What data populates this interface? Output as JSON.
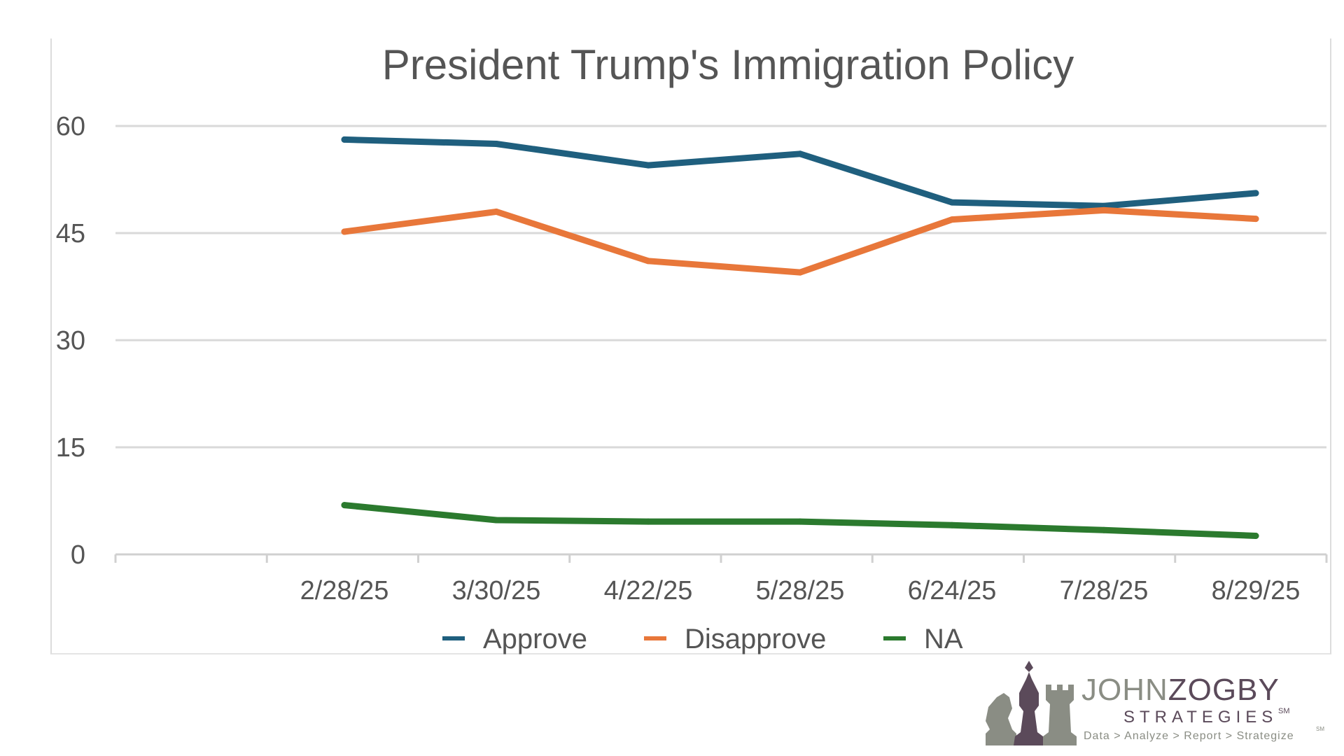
{
  "chart_data": {
    "type": "line",
    "title": "President Trump's Immigration Policy",
    "xlabel": "",
    "ylabel": "",
    "categories": [
      "2/28/25",
      "3/30/25",
      "4/22/25",
      "5/28/25",
      "6/24/25",
      "7/28/25",
      "8/29/25"
    ],
    "y_ticks": [
      "0",
      "15",
      "30",
      "45",
      "60"
    ],
    "ylim": [
      0,
      60
    ],
    "grid": true,
    "legend_position": "bottom",
    "series": [
      {
        "name": "Approve",
        "color": "#1f5f7e",
        "values": [
          58.1,
          57.5,
          54.5,
          56.1,
          49.3,
          48.8,
          50.6
        ]
      },
      {
        "name": "Disapprove",
        "color": "#e8773a",
        "values": [
          45.2,
          48.0,
          41.1,
          39.5,
          46.9,
          48.2,
          47.0
        ]
      },
      {
        "name": "NA",
        "color": "#2b7a2e",
        "values": [
          6.9,
          4.8,
          4.6,
          4.6,
          4.1,
          3.4,
          2.6
        ]
      }
    ]
  },
  "logo": {
    "name_part1": "JOHN",
    "name_part2": "ZOGBY",
    "sub": "STRATEGIES",
    "service_mark": "SM",
    "tagline": "Data > Analyze > Report > Strategize",
    "tagline_mark": "SM",
    "colors": {
      "gray": "#8a8d84",
      "purple": "#5b4a5a"
    }
  }
}
